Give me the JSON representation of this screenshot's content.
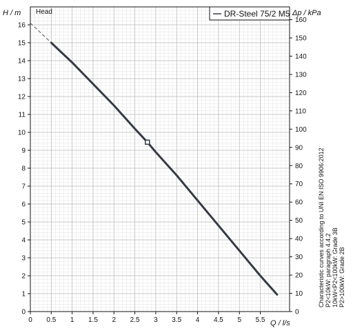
{
  "chart_data": {
    "type": "line",
    "panel_label": "Head",
    "ylabel_left": "H / m",
    "ylabel_right": "Δp / kPa",
    "xlabel": "Q / l/s",
    "xlim": [
      0,
      6.2
    ],
    "ylim_left": [
      0,
      17
    ],
    "ylim_right": [
      0,
      167
    ],
    "x_ticks": [
      "0",
      "0.5",
      "1",
      "1.5",
      "2",
      "2.5",
      "3",
      "3.5",
      "4",
      "4.5",
      "5",
      "5.5"
    ],
    "y_ticks_left": [
      "0",
      "1",
      "2",
      "3",
      "4",
      "5",
      "6",
      "7",
      "8",
      "9",
      "10",
      "11",
      "12",
      "13",
      "14",
      "15",
      "16"
    ],
    "y_ticks_right": [
      "0",
      "10",
      "20",
      "30",
      "40",
      "50",
      "60",
      "70",
      "80",
      "90",
      "100",
      "110",
      "120",
      "130",
      "140",
      "150",
      "160"
    ],
    "legend": {
      "label": "DR-Steel 75/2 M5",
      "position": "top-right"
    },
    "grid": true,
    "series": [
      {
        "name": "DR-Steel 75/2 M5",
        "color": "#363a45",
        "x": [
          0.5,
          1.0,
          1.5,
          2.0,
          2.5,
          2.8,
          3.0,
          3.5,
          4.0,
          4.5,
          5.0,
          5.5,
          5.9
        ],
        "y": [
          15.0,
          13.9,
          12.7,
          11.5,
          10.2,
          9.45,
          8.9,
          7.6,
          6.2,
          4.8,
          3.4,
          2.0,
          0.95
        ]
      }
    ],
    "extrapolation": {
      "x": [
        0.0,
        0.5
      ],
      "y": [
        16.1,
        15.0
      ]
    },
    "operating_point": {
      "x": 2.8,
      "y": 9.45
    },
    "note_lines": [
      "Characteristic curves according to UNI EN ISO 9906:2012",
      "P2<10kW: paragraph 4.4.2",
      "10kW<P2<100kW: Grade 3B",
      "P2>100kW: Grade 2B"
    ]
  }
}
